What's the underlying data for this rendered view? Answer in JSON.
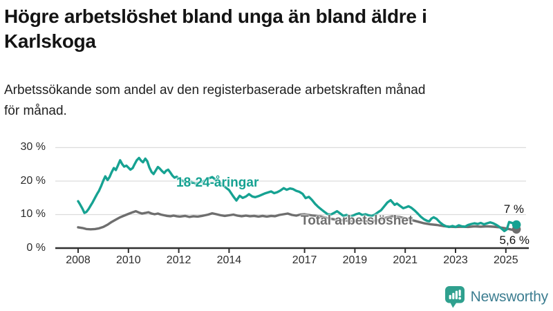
{
  "header": {
    "title_lines": [
      "Högre arbetslöshet bland unga än bland äldre i",
      "Karlskoga"
    ],
    "subtitle_lines": [
      "Arbetssökande som andel av den registerbaserade arbetskraften månad",
      "för månad."
    ]
  },
  "footer": {
    "brand": "Newsworthy",
    "logo_icon": "newsworthy-speech-bubble-chart-icon"
  },
  "colors": {
    "young_series": "#16a292",
    "total_series": "#6e6e6e",
    "grid": "#dcdcdc",
    "axis": "#2f2f2f",
    "axis_text": "#2b2b2b",
    "end_label_text": "#111111",
    "title_text": "#141414",
    "brand_text": "#3d7e91",
    "brand_icon": "#2fa08e"
  },
  "chart_data": {
    "type": "line",
    "title": "Högre arbetslöshet bland unga än bland äldre i Karlskoga",
    "subtitle": "Arbetssökande som andel av den registerbaserade arbetskraften månad för månad.",
    "xlabel": "",
    "ylabel": "",
    "grid": "horizontal-only",
    "legend": "inline-labels",
    "ylim": [
      0,
      32
    ],
    "xlim": [
      2007.9,
      2025.9
    ],
    "y_ticks": [
      0,
      10,
      20,
      30
    ],
    "y_tick_labels": [
      "0 %",
      "10 %",
      "20 %",
      "30 %"
    ],
    "x_ticks": [
      2008,
      2010,
      2012,
      2014,
      2017,
      2019,
      2021,
      2023,
      2025
    ],
    "x_tick_labels": [
      "2008",
      "2010",
      "2012",
      "2014",
      "2017",
      "2019",
      "2021",
      "2023",
      "2025"
    ],
    "series": [
      {
        "name": "18-24-åringar",
        "color": "#16a292",
        "end_label": "7 %",
        "end_value": 7.0,
        "points": [
          [
            2008.0,
            14.0
          ],
          [
            2008.08,
            13.0
          ],
          [
            2008.17,
            11.8
          ],
          [
            2008.25,
            10.5
          ],
          [
            2008.33,
            10.8
          ],
          [
            2008.42,
            11.7
          ],
          [
            2008.5,
            12.7
          ],
          [
            2008.58,
            13.7
          ],
          [
            2008.67,
            15.0
          ],
          [
            2008.75,
            16.1
          ],
          [
            2008.83,
            17.1
          ],
          [
            2008.92,
            18.6
          ],
          [
            2009.0,
            20.1
          ],
          [
            2009.08,
            21.4
          ],
          [
            2009.17,
            20.3
          ],
          [
            2009.25,
            21.2
          ],
          [
            2009.33,
            22.6
          ],
          [
            2009.42,
            23.9
          ],
          [
            2009.5,
            23.3
          ],
          [
            2009.58,
            24.6
          ],
          [
            2009.67,
            26.2
          ],
          [
            2009.75,
            25.1
          ],
          [
            2009.83,
            24.3
          ],
          [
            2009.92,
            24.6
          ],
          [
            2010.0,
            24.0
          ],
          [
            2010.08,
            23.4
          ],
          [
            2010.17,
            23.9
          ],
          [
            2010.25,
            25.1
          ],
          [
            2010.33,
            26.2
          ],
          [
            2010.42,
            26.9
          ],
          [
            2010.5,
            26.1
          ],
          [
            2010.58,
            25.6
          ],
          [
            2010.67,
            26.7
          ],
          [
            2010.75,
            25.9
          ],
          [
            2010.83,
            24.1
          ],
          [
            2010.92,
            22.7
          ],
          [
            2011.0,
            22.1
          ],
          [
            2011.08,
            23.1
          ],
          [
            2011.17,
            24.2
          ],
          [
            2011.25,
            23.7
          ],
          [
            2011.33,
            23.0
          ],
          [
            2011.42,
            22.4
          ],
          [
            2011.5,
            23.1
          ],
          [
            2011.58,
            23.4
          ],
          [
            2011.67,
            22.5
          ],
          [
            2011.75,
            21.6
          ],
          [
            2011.83,
            21.0
          ],
          [
            2011.92,
            21.3
          ],
          [
            2012.0,
            20.7
          ],
          [
            2012.17,
            20.0
          ],
          [
            2012.33,
            19.4
          ],
          [
            2012.5,
            19.8
          ],
          [
            2012.67,
            19.2
          ],
          [
            2012.83,
            19.6
          ],
          [
            2013.0,
            20.0
          ],
          [
            2013.17,
            20.7
          ],
          [
            2013.33,
            21.2
          ],
          [
            2013.5,
            20.2
          ],
          [
            2013.67,
            19.4
          ],
          [
            2013.83,
            18.3
          ],
          [
            2014.0,
            17.3
          ],
          [
            2014.17,
            15.4
          ],
          [
            2014.29,
            14.2
          ],
          [
            2014.42,
            15.6
          ],
          [
            2014.54,
            15.0
          ],
          [
            2014.67,
            15.4
          ],
          [
            2014.79,
            16.1
          ],
          [
            2014.92,
            15.4
          ],
          [
            2015.04,
            15.2
          ],
          [
            2015.17,
            15.5
          ],
          [
            2015.29,
            15.9
          ],
          [
            2015.42,
            16.3
          ],
          [
            2015.54,
            16.6
          ],
          [
            2015.67,
            16.9
          ],
          [
            2015.79,
            16.4
          ],
          [
            2015.92,
            16.7
          ],
          [
            2016.04,
            17.2
          ],
          [
            2016.17,
            17.9
          ],
          [
            2016.29,
            17.4
          ],
          [
            2016.42,
            17.8
          ],
          [
            2016.54,
            17.6
          ],
          [
            2016.67,
            17.1
          ],
          [
            2016.79,
            16.8
          ],
          [
            2016.92,
            16.2
          ],
          [
            2017.04,
            14.9
          ],
          [
            2017.17,
            15.3
          ],
          [
            2017.29,
            14.4
          ],
          [
            2017.42,
            13.2
          ],
          [
            2017.54,
            12.3
          ],
          [
            2017.67,
            11.5
          ],
          [
            2017.79,
            10.8
          ],
          [
            2017.92,
            10.1
          ],
          [
            2018.04,
            10.0
          ],
          [
            2018.17,
            10.5
          ],
          [
            2018.29,
            11.0
          ],
          [
            2018.42,
            10.3
          ],
          [
            2018.54,
            9.6
          ],
          [
            2018.67,
            9.9
          ],
          [
            2018.79,
            9.4
          ],
          [
            2018.92,
            9.7
          ],
          [
            2019.04,
            10.1
          ],
          [
            2019.17,
            10.4
          ],
          [
            2019.29,
            9.9
          ],
          [
            2019.42,
            10.1
          ],
          [
            2019.54,
            9.8
          ],
          [
            2019.67,
            9.6
          ],
          [
            2019.79,
            10.0
          ],
          [
            2019.92,
            10.7
          ],
          [
            2020.04,
            11.3
          ],
          [
            2020.17,
            12.5
          ],
          [
            2020.29,
            13.6
          ],
          [
            2020.42,
            14.3
          ],
          [
            2020.5,
            13.6
          ],
          [
            2020.58,
            12.9
          ],
          [
            2020.67,
            13.3
          ],
          [
            2020.79,
            12.6
          ],
          [
            2020.92,
            11.9
          ],
          [
            2021.04,
            12.2
          ],
          [
            2021.13,
            12.5
          ],
          [
            2021.25,
            12.0
          ],
          [
            2021.38,
            11.2
          ],
          [
            2021.5,
            10.3
          ],
          [
            2021.63,
            9.3
          ],
          [
            2021.75,
            8.6
          ],
          [
            2021.88,
            8.1
          ],
          [
            2021.96,
            8.0
          ],
          [
            2022.04,
            8.8
          ],
          [
            2022.13,
            9.2
          ],
          [
            2022.25,
            8.7
          ],
          [
            2022.38,
            7.7
          ],
          [
            2022.5,
            7.0
          ],
          [
            2022.63,
            6.5
          ],
          [
            2022.75,
            6.3
          ],
          [
            2022.88,
            6.6
          ],
          [
            2023.0,
            6.3
          ],
          [
            2023.13,
            6.8
          ],
          [
            2023.25,
            6.5
          ],
          [
            2023.38,
            6.4
          ],
          [
            2023.5,
            6.9
          ],
          [
            2023.63,
            7.2
          ],
          [
            2023.75,
            7.4
          ],
          [
            2023.88,
            7.2
          ],
          [
            2024.0,
            7.5
          ],
          [
            2024.13,
            7.1
          ],
          [
            2024.25,
            7.4
          ],
          [
            2024.38,
            7.7
          ],
          [
            2024.5,
            7.4
          ],
          [
            2024.63,
            6.9
          ],
          [
            2024.75,
            6.3
          ],
          [
            2024.85,
            5.7
          ],
          [
            2024.94,
            5.1
          ],
          [
            2025.04,
            5.6
          ],
          [
            2025.13,
            7.8
          ],
          [
            2025.25,
            7.5
          ],
          [
            2025.42,
            7.0
          ]
        ]
      },
      {
        "name": "Total arbetslöshet",
        "color": "#6e6e6e",
        "end_label": "5,6 %",
        "end_value": 5.6,
        "points": [
          [
            2008.0,
            6.2
          ],
          [
            2008.17,
            6.0
          ],
          [
            2008.33,
            5.7
          ],
          [
            2008.5,
            5.6
          ],
          [
            2008.67,
            5.7
          ],
          [
            2008.83,
            5.9
          ],
          [
            2009.0,
            6.3
          ],
          [
            2009.17,
            7.0
          ],
          [
            2009.33,
            7.8
          ],
          [
            2009.5,
            8.5
          ],
          [
            2009.67,
            9.2
          ],
          [
            2009.83,
            9.7
          ],
          [
            2010.0,
            10.2
          ],
          [
            2010.17,
            10.7
          ],
          [
            2010.29,
            11.0
          ],
          [
            2010.42,
            10.6
          ],
          [
            2010.54,
            10.3
          ],
          [
            2010.67,
            10.5
          ],
          [
            2010.79,
            10.7
          ],
          [
            2010.92,
            10.3
          ],
          [
            2011.04,
            10.1
          ],
          [
            2011.17,
            10.3
          ],
          [
            2011.29,
            10.0
          ],
          [
            2011.42,
            9.8
          ],
          [
            2011.54,
            9.6
          ],
          [
            2011.67,
            9.5
          ],
          [
            2011.79,
            9.7
          ],
          [
            2011.92,
            9.5
          ],
          [
            2012.04,
            9.4
          ],
          [
            2012.25,
            9.6
          ],
          [
            2012.42,
            9.3
          ],
          [
            2012.58,
            9.5
          ],
          [
            2012.75,
            9.4
          ],
          [
            2012.92,
            9.6
          ],
          [
            2013.04,
            9.8
          ],
          [
            2013.17,
            10.0
          ],
          [
            2013.33,
            10.4
          ],
          [
            2013.5,
            10.1
          ],
          [
            2013.67,
            9.8
          ],
          [
            2013.83,
            9.6
          ],
          [
            2014.0,
            9.8
          ],
          [
            2014.17,
            10.0
          ],
          [
            2014.33,
            9.7
          ],
          [
            2014.5,
            9.5
          ],
          [
            2014.67,
            9.7
          ],
          [
            2014.83,
            9.5
          ],
          [
            2015.0,
            9.6
          ],
          [
            2015.17,
            9.4
          ],
          [
            2015.33,
            9.6
          ],
          [
            2015.5,
            9.4
          ],
          [
            2015.67,
            9.6
          ],
          [
            2015.83,
            9.5
          ],
          [
            2016.0,
            9.9
          ],
          [
            2016.17,
            10.1
          ],
          [
            2016.33,
            10.3
          ],
          [
            2016.5,
            9.9
          ],
          [
            2016.67,
            9.7
          ],
          [
            2016.83,
            10.0
          ],
          [
            2017.0,
            10.1
          ],
          [
            2017.17,
            9.9
          ],
          [
            2017.33,
            9.7
          ],
          [
            2017.5,
            9.6
          ],
          [
            2017.67,
            9.4
          ],
          [
            2017.83,
            9.1
          ],
          [
            2018.0,
            8.8
          ],
          [
            2018.25,
            8.5
          ],
          [
            2018.5,
            8.3
          ],
          [
            2018.75,
            8.1
          ],
          [
            2019.0,
            8.0
          ],
          [
            2019.25,
            8.2
          ],
          [
            2019.5,
            8.0
          ],
          [
            2019.75,
            8.1
          ],
          [
            2020.0,
            8.4
          ],
          [
            2020.25,
            9.1
          ],
          [
            2020.5,
            9.5
          ],
          [
            2020.75,
            9.3
          ],
          [
            2021.0,
            8.9
          ],
          [
            2021.25,
            8.4
          ],
          [
            2021.5,
            7.9
          ],
          [
            2021.75,
            7.4
          ],
          [
            2022.0,
            7.1
          ],
          [
            2022.25,
            6.9
          ],
          [
            2022.5,
            6.6
          ],
          [
            2022.75,
            6.4
          ],
          [
            2023.0,
            6.3
          ],
          [
            2023.25,
            6.4
          ],
          [
            2023.5,
            6.3
          ],
          [
            2023.75,
            6.5
          ],
          [
            2024.0,
            6.4
          ],
          [
            2024.25,
            6.5
          ],
          [
            2024.5,
            6.4
          ],
          [
            2024.75,
            6.2
          ],
          [
            2025.0,
            5.9
          ],
          [
            2025.17,
            5.6
          ],
          [
            2025.3,
            5.4
          ],
          [
            2025.42,
            5.6
          ]
        ]
      }
    ]
  }
}
